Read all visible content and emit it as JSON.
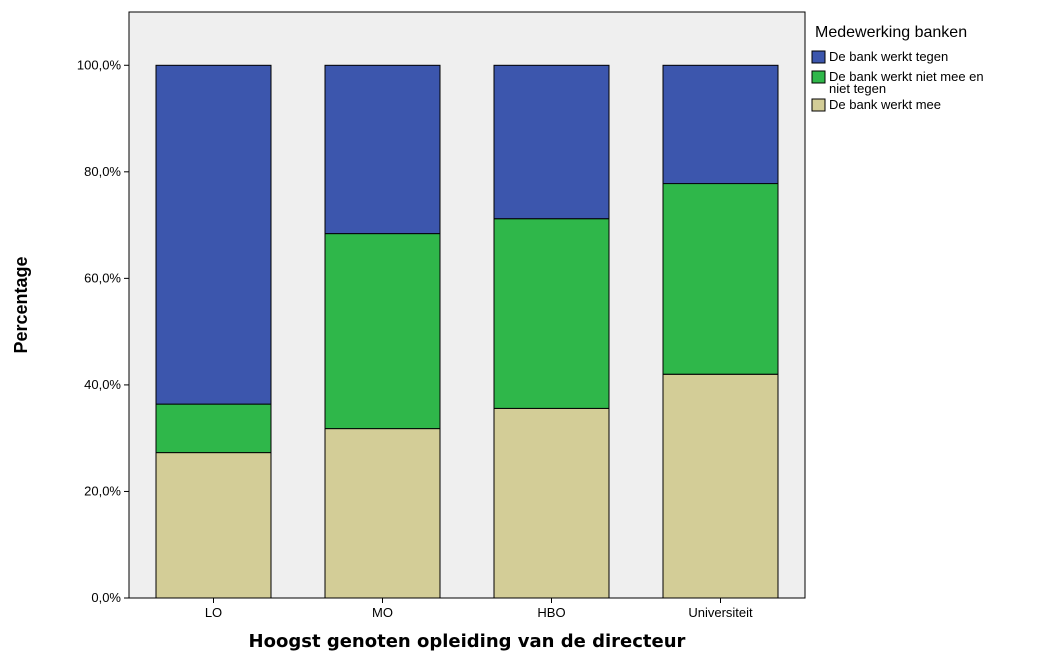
{
  "chart_data": {
    "type": "bar",
    "stacked": true,
    "categories": [
      "LO",
      "MO",
      "HBO",
      "Universiteit"
    ],
    "series": [
      {
        "name": "De bank werkt mee",
        "values": [
          27.3,
          31.8,
          35.6,
          42.0
        ],
        "color": "#d3cd97"
      },
      {
        "name": "De bank werkt niet mee en niet tegen",
        "values": [
          9.1,
          36.6,
          35.6,
          35.8
        ],
        "color": "#2fb74a"
      },
      {
        "name": "De bank werkt tegen",
        "values": [
          63.6,
          31.6,
          28.8,
          22.2
        ],
        "color": "#3c56ad"
      }
    ],
    "xlabel": "Hoogst genoten opleiding van de directeur",
    "ylabel": "Percentage",
    "ylim": [
      0,
      110
    ],
    "yticks": [
      "0,0%",
      "20,0%",
      "40,0%",
      "60,0%",
      "80,0%",
      "100,0%"
    ],
    "ytick_values": [
      0,
      20,
      40,
      60,
      80,
      100
    ],
    "grid": false,
    "plot_background": "#efefef",
    "legend": {
      "title": "Medewerking banken",
      "placement": "top-right, outside plot",
      "entries": [
        {
          "lines": [
            "De bank werkt tegen"
          ],
          "color": "#3c56ad"
        },
        {
          "lines": [
            "De bank werkt niet mee en",
            "niet tegen"
          ],
          "color": "#2fb74a"
        },
        {
          "lines": [
            "De bank werkt mee"
          ],
          "color": "#d3cd97"
        }
      ]
    }
  }
}
